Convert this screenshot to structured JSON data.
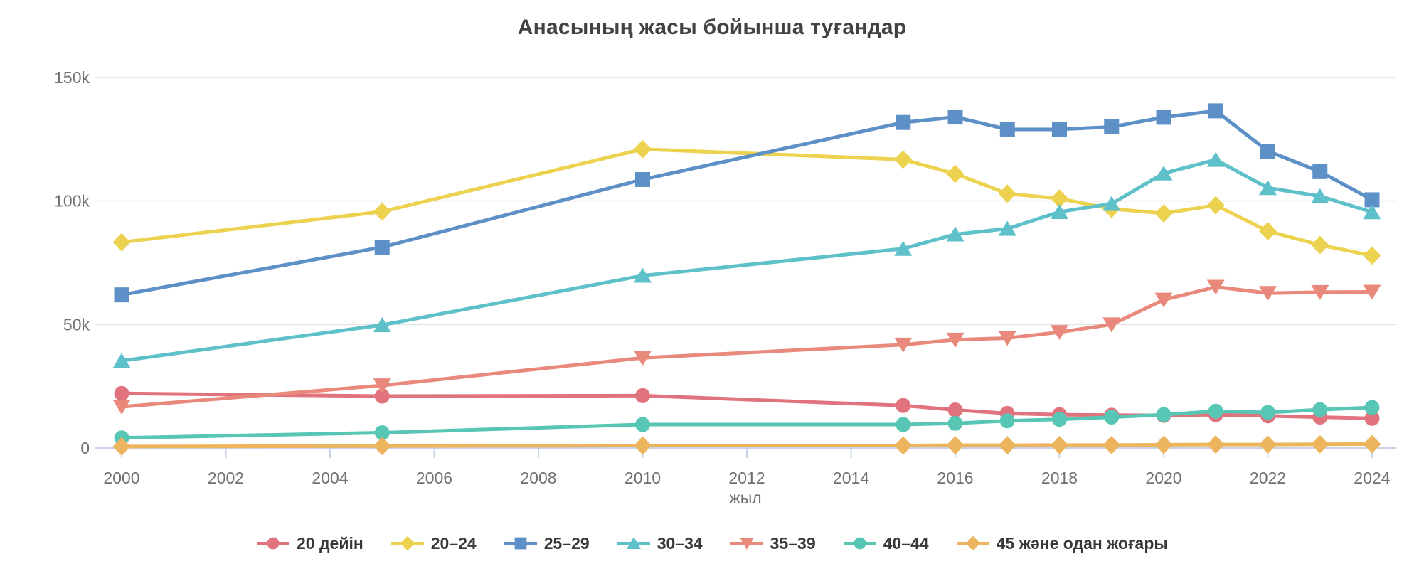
{
  "chart": {
    "background": "#ffffff",
    "colors": {
      "title_text": "#424242",
      "axis_tick_text": "#6e7074",
      "legend_text": "#383838",
      "gridline": "#e3e3e3",
      "axis_line": "#c9d2e6",
      "tick_mark": "#c9d2e6"
    }
  },
  "chart_data": {
    "type": "line",
    "title": "Анасының жасы бойынша туғандар",
    "xlabel": "жыл",
    "ylabel": "",
    "xlim": [
      2000,
      2024
    ],
    "ylim": [
      0,
      150000
    ],
    "x_tick_step": 2,
    "x_tick_labels": [
      "2000",
      "2002",
      "2004",
      "2006",
      "2008",
      "2010",
      "2012",
      "2014",
      "2016",
      "2018",
      "2020",
      "2022",
      "2024"
    ],
    "y_ticks": [
      0,
      50000,
      100000,
      150000
    ],
    "y_tick_labels": [
      "0",
      "50k",
      "100k",
      "150k"
    ],
    "grid": true,
    "legend_position": "bottom",
    "x": [
      2000,
      2005,
      2010,
      2015,
      2016,
      2017,
      2018,
      2019,
      2020,
      2021,
      2022,
      2023,
      2024
    ],
    "series": [
      {
        "name": "20 дейін",
        "marker": "circle",
        "color": "#e0737e",
        "values": [
          22100,
          21000,
          21200,
          17200,
          15400,
          14000,
          13500,
          13300,
          13200,
          13500,
          13000,
          12500,
          12000
        ]
      },
      {
        "name": "20–24",
        "marker": "diamond",
        "color": "#edd24f",
        "values": [
          83300,
          95700,
          121000,
          116800,
          111000,
          103000,
          101000,
          96800,
          95000,
          98300,
          87800,
          82200,
          77900
        ]
      },
      {
        "name": "25–29",
        "marker": "square",
        "color": "#5c90c7",
        "values": [
          62000,
          81300,
          108700,
          131800,
          134000,
          129000,
          129000,
          130000,
          133900,
          136500,
          120200,
          111900,
          100500
        ]
      },
      {
        "name": "30–34",
        "marker": "triangle-up",
        "color": "#5ec1c9",
        "values": [
          35300,
          49800,
          69800,
          80700,
          86500,
          88800,
          95600,
          98900,
          111200,
          116700,
          105300,
          102000,
          95500
        ]
      },
      {
        "name": "35–39",
        "marker": "triangle-down",
        "color": "#e8897b",
        "values": [
          16700,
          25300,
          36500,
          41800,
          43800,
          44500,
          46900,
          50000,
          60000,
          65200,
          62700,
          63100,
          63200
        ]
      },
      {
        "name": "40–44",
        "marker": "circle",
        "color": "#57c6b4",
        "values": [
          4100,
          6200,
          9500,
          9500,
          10000,
          11000,
          11600,
          12500,
          13500,
          14900,
          14400,
          15500,
          16400
        ]
      },
      {
        "name": "45 және одан жоғары",
        "marker": "diamond",
        "color": "#edb45e",
        "values": [
          600,
          800,
          1000,
          1000,
          1100,
          1100,
          1200,
          1200,
          1300,
          1400,
          1400,
          1500,
          1600
        ]
      }
    ]
  }
}
